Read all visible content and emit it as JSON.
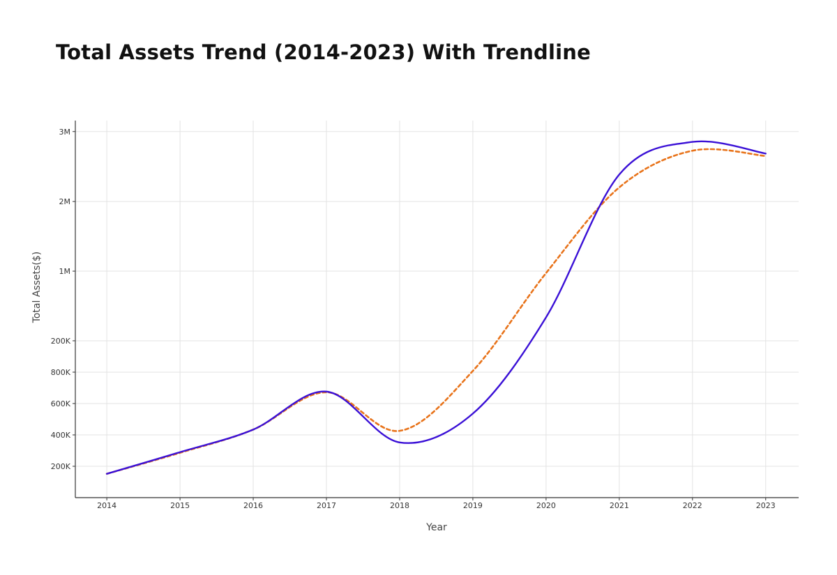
{
  "title": "Total Assets Trend (2014-2023) With Trendline",
  "chart_data": {
    "type": "line",
    "title": "Total Assets Trend (2014-2023) With Trendline",
    "xlabel": "Year",
    "ylabel": "Total Assets($)",
    "x": [
      2014,
      2015,
      2016,
      2017,
      2018,
      2019,
      2020,
      2021,
      2022,
      2023
    ],
    "xlim": [
      2013.57,
      2023.45
    ],
    "y_ticks": [
      {
        "label": "200K",
        "level": 1
      },
      {
        "label": "400K",
        "level": 2
      },
      {
        "label": "600K",
        "level": 3
      },
      {
        "label": "800K",
        "level": 4
      },
      {
        "label": "200K",
        "level": 5
      },
      {
        "label": "1M",
        "level": 7.22
      },
      {
        "label": "2M",
        "level": 9.44
      },
      {
        "label": "3M",
        "level": 11.67
      }
    ],
    "ylim": [
      0,
      12.02
    ],
    "grid": true,
    "series": [
      {
        "values": [
          0.76,
          1.45,
          2.17,
          3.38,
          1.76,
          2.68,
          5.75,
          10.3,
          11.34,
          10.97
        ],
        "color": "#3a10d6",
        "style": "solid"
      },
      {
        "values": [
          0.76,
          1.43,
          2.17,
          3.36,
          2.13,
          4.04,
          7.16,
          9.89,
          11.06,
          10.89
        ],
        "color": "#e8731a",
        "style": "dashed"
      }
    ]
  }
}
